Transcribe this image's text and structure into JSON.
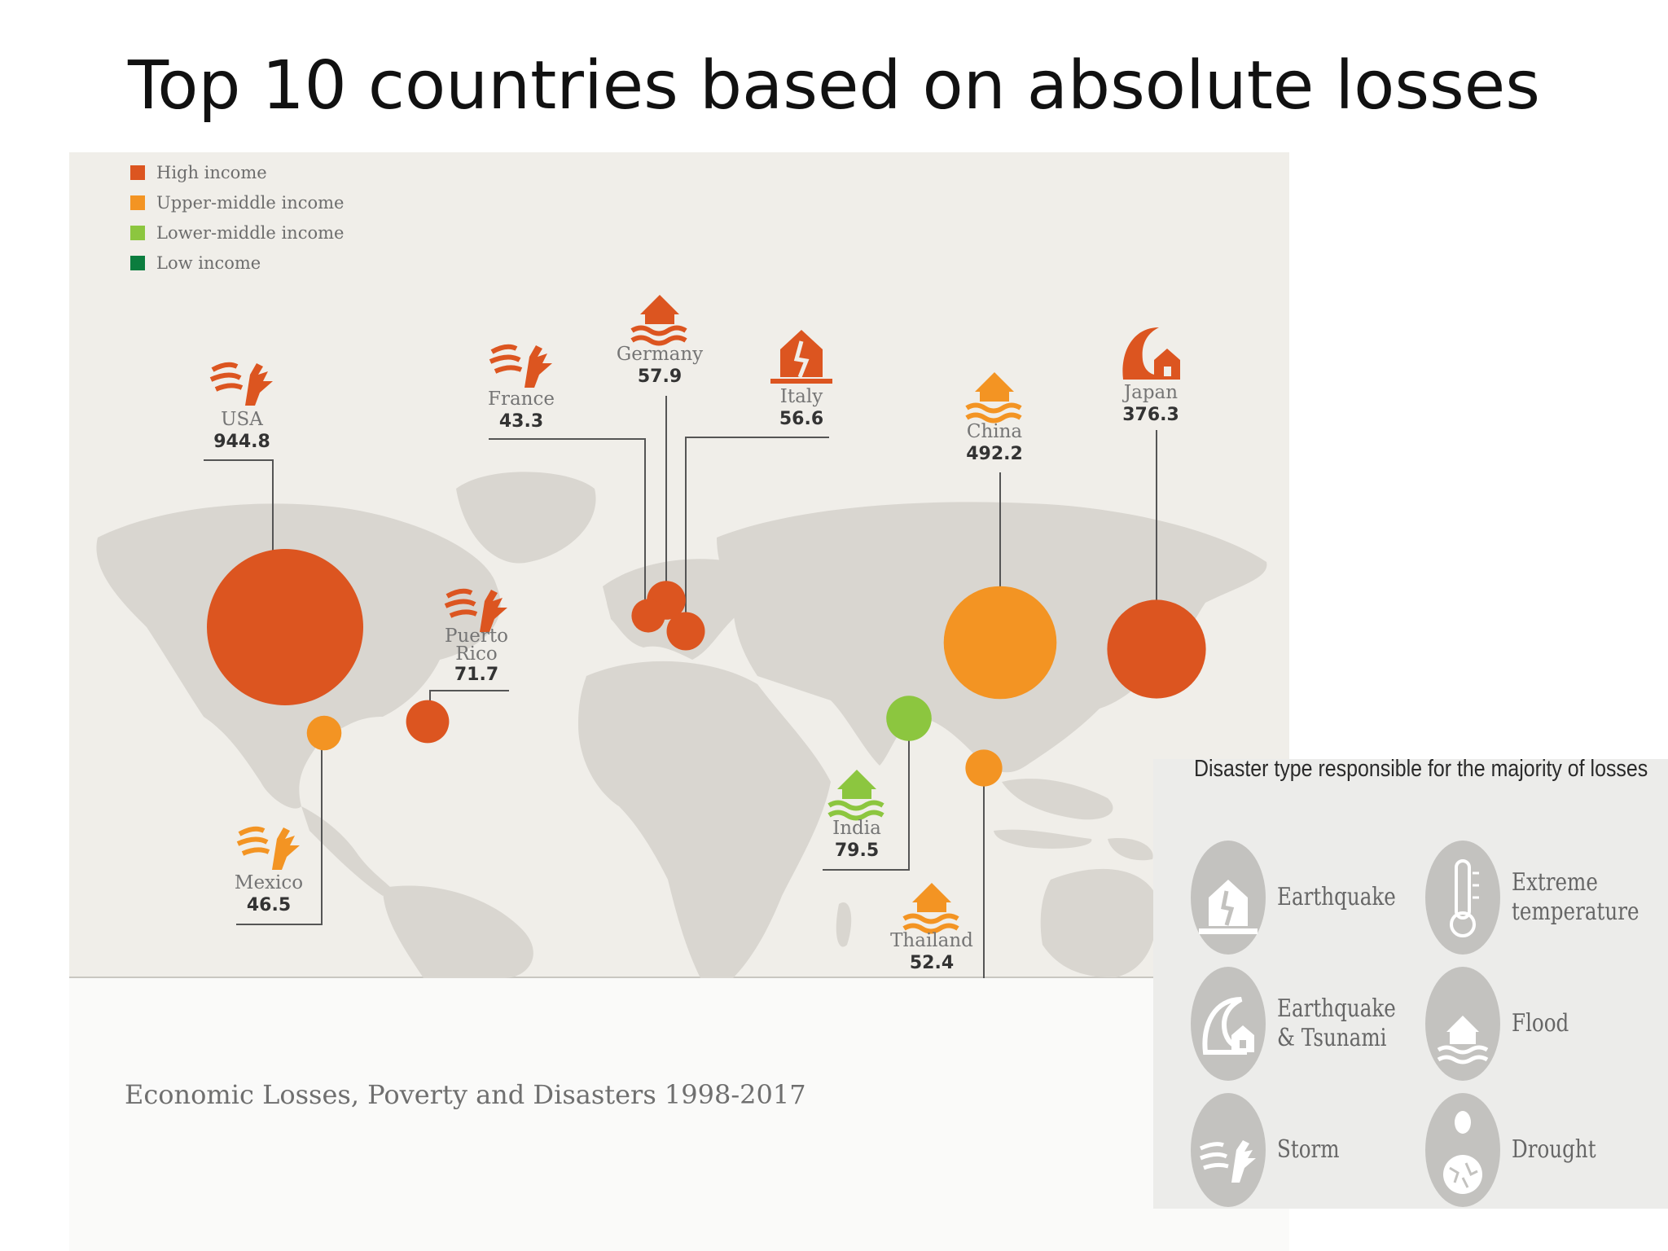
{
  "title": "Top 10 countries based on absolute losses",
  "source": "Economic Losses, Poverty and Disasters 1998-2017",
  "colors": {
    "high_income": "#dc5520",
    "upper_middle_income": "#f39423",
    "lower_middle_income": "#8cc63f",
    "low_income": "#0b7d3e",
    "land": "#d9d6d0",
    "panel": "#f0eee9"
  },
  "legend": [
    {
      "label": "High income",
      "color": "#dc5520"
    },
    {
      "label": "Upper-middle income",
      "color": "#f39423"
    },
    {
      "label": "Lower-middle income",
      "color": "#8cc63f"
    },
    {
      "label": "Low income",
      "color": "#0b7d3e"
    }
  ],
  "chart_data": {
    "type": "scatter",
    "title": "Top 10 countries based on absolute losses",
    "points": [
      {
        "country": "USA",
        "value": "944.8",
        "income": "High income",
        "disaster": "Storm"
      },
      {
        "country": "China",
        "value": "492.2",
        "income": "Upper-middle income",
        "disaster": "Flood"
      },
      {
        "country": "Japan",
        "value": "376.3",
        "income": "High income",
        "disaster": "Earthquake & Tsunami"
      },
      {
        "country": "India",
        "value": "79.5",
        "income": "Lower-middle income",
        "disaster": "Flood"
      },
      {
        "country": "Puerto Rico",
        "value": "71.7",
        "income": "High income",
        "disaster": "Storm"
      },
      {
        "country": "Germany",
        "value": "57.9",
        "income": "High income",
        "disaster": "Flood"
      },
      {
        "country": "Italy",
        "value": "56.6",
        "income": "High income",
        "disaster": "Earthquake"
      },
      {
        "country": "Thailand",
        "value": "52.4",
        "income": "Upper-middle income",
        "disaster": "Flood"
      },
      {
        "country": "Mexico",
        "value": "46.5",
        "income": "Upper-middle income",
        "disaster": "Storm"
      },
      {
        "country": "France",
        "value": "43.3",
        "income": "High income",
        "disaster": "Storm"
      }
    ]
  },
  "disaster_types": {
    "title": "Disaster type responsible for the majority of losses",
    "items": [
      {
        "label": "Earthquake",
        "icon": "earthquake-icon"
      },
      {
        "label": "Extreme temperature",
        "icon": "thermometer-icon"
      },
      {
        "label": "Earthquake & Tsunami",
        "icon": "tsunami-icon"
      },
      {
        "label": "Flood",
        "icon": "flood-icon"
      },
      {
        "label": "Storm",
        "icon": "storm-icon"
      },
      {
        "label": "Drought",
        "icon": "drought-icon"
      }
    ]
  }
}
